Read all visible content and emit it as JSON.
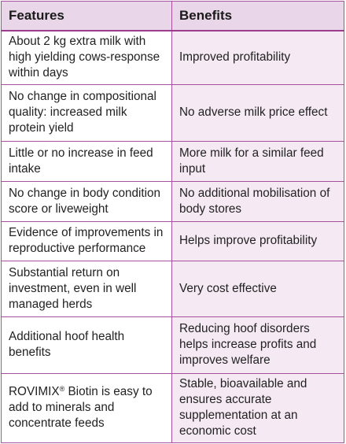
{
  "header": {
    "features": "Features",
    "benefits": "Benefits"
  },
  "rows": [
    {
      "feature": "About 2 kg extra milk with high yielding cows-response within days",
      "benefit": "Improved profitability"
    },
    {
      "feature": "No change in compositional quality: increased milk protein yield",
      "benefit": "No adverse milk price effect"
    },
    {
      "feature": "Little or no increase in feed intake",
      "benefit": "More milk for a similar feed input"
    },
    {
      "feature": "No change in body condition score or liveweight",
      "benefit": "No additional mobilisation of body stores"
    },
    {
      "feature": "Evidence of improvements in reproductive performance",
      "benefit": "Helps improve profitability"
    },
    {
      "feature": "Substantial return on investment, even in well managed herds",
      "benefit": "Very cost effective"
    },
    {
      "feature": "Additional hoof health benefits",
      "benefit": "Reducing hoof disorders helps increase profits and improves welfare"
    },
    {
      "feature_brand": "ROVIMIX",
      "feature_reg": "®",
      "feature": " Biotin is easy to add to minerals and concentrate feeds",
      "benefit": "Stable, bioavailable and ensures accurate supplementation at an economic cost"
    }
  ]
}
